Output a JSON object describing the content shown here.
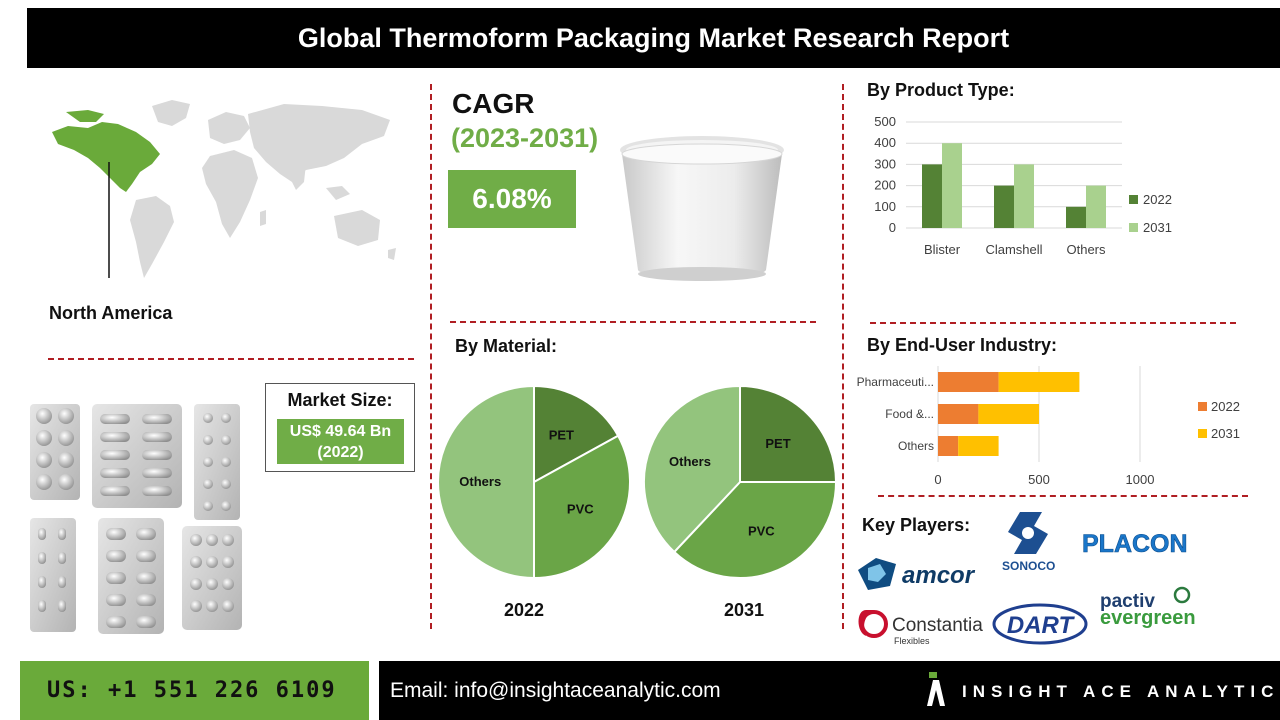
{
  "header": {
    "title": "Global Thermoform Packaging Market Research Report"
  },
  "region": {
    "label": "North America"
  },
  "cagr": {
    "title": "CAGR",
    "years": "(2023-2031)",
    "value": "6.08%"
  },
  "market_size": {
    "title": "Market Size:",
    "value_line1": "US$ 49.64 Bn",
    "value_line2": "(2022)"
  },
  "sections": {
    "product_type": "By Product Type:",
    "material": "By Material:",
    "end_user": "By End-User Industry:",
    "key_players": "Key Players:"
  },
  "colors": {
    "accent_green": "#70ad47",
    "dark_green": "#548235",
    "light_green": "#a9d18e",
    "orange": "#ed7d31",
    "yellow": "#ffc000",
    "divider_red": "#b01e23"
  },
  "chart_data": [
    {
      "type": "bar",
      "name": "product_type",
      "categories": [
        "Blister",
        "Clamshell",
        "Others"
      ],
      "series": [
        {
          "name": "2022",
          "values": [
            300,
            200,
            100
          ]
        },
        {
          "name": "2031",
          "values": [
            400,
            300,
            200
          ]
        }
      ],
      "yticks": [
        "0",
        "100",
        "200",
        "300",
        "400",
        "500"
      ],
      "ylim": [
        0,
        500
      ],
      "legend": "right"
    },
    {
      "type": "pie",
      "name": "material_2022",
      "label": "2022",
      "slices": [
        {
          "name": "PET",
          "value": 17
        },
        {
          "name": "PVC",
          "value": 33
        },
        {
          "name": "Others",
          "value": 50
        }
      ]
    },
    {
      "type": "pie",
      "name": "material_2031",
      "label": "2031",
      "slices": [
        {
          "name": "PET",
          "value": 25
        },
        {
          "name": "PVC",
          "value": 37
        },
        {
          "name": "Others",
          "value": 38
        }
      ]
    },
    {
      "type": "bar",
      "orientation": "horizontal",
      "stacked": true,
      "name": "end_user",
      "categories": [
        "Pharmaceuti...",
        "Food &...",
        "Others"
      ],
      "series": [
        {
          "name": "2022",
          "values": [
            300,
            200,
            100
          ]
        },
        {
          "name": "2031",
          "values": [
            400,
            300,
            200
          ]
        }
      ],
      "xticks": [
        "0",
        "500",
        "1000"
      ],
      "xlim": [
        0,
        1000
      ],
      "legend": "right"
    }
  ],
  "key_players": [
    "amcor",
    "SONOCO",
    "PLACON",
    "Constantia",
    "Flexibles",
    "DART",
    "pactiv",
    "evergreen"
  ],
  "footer": {
    "phone": "US: +1 551 226 6109",
    "email": "Email: info@insightaceanalytic.com",
    "brand": "INSIGHT ACE ANALYTIC"
  }
}
